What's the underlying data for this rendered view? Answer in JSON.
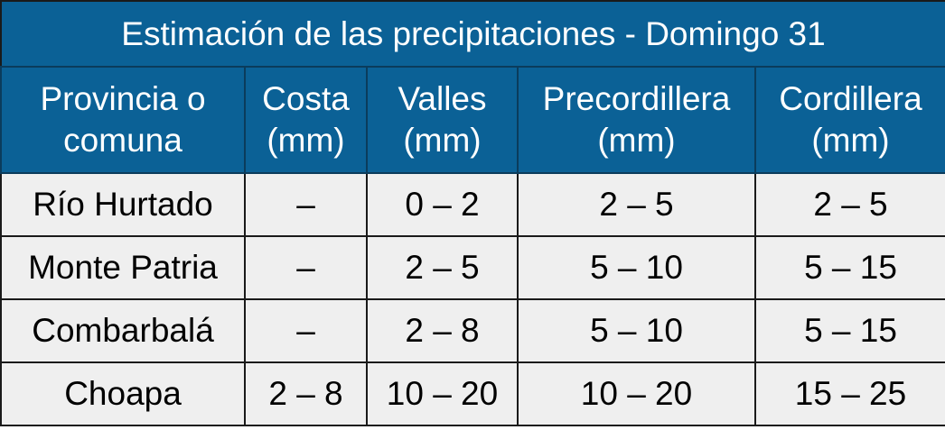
{
  "header": {
    "title": "Estimación de las precipitaciones - Domingo 31"
  },
  "table": {
    "columns": [
      "Provincia o comuna",
      "Costa (mm)",
      "Valles (mm)",
      "Precordillera (mm)",
      "Cordillera (mm)"
    ],
    "rows": [
      [
        "Río Hurtado",
        "–",
        "0 – 2",
        "2 – 5",
        "2 – 5"
      ],
      [
        "Monte Patria",
        "–",
        "2 – 5",
        "5 – 10",
        "5 – 15"
      ],
      [
        "Combarbalá",
        "–",
        "2 – 8",
        "5 – 10",
        "5 – 15"
      ],
      [
        "Choapa",
        "2 – 8",
        "10 – 20",
        "10 – 20",
        "15 – 25"
      ]
    ]
  }
}
